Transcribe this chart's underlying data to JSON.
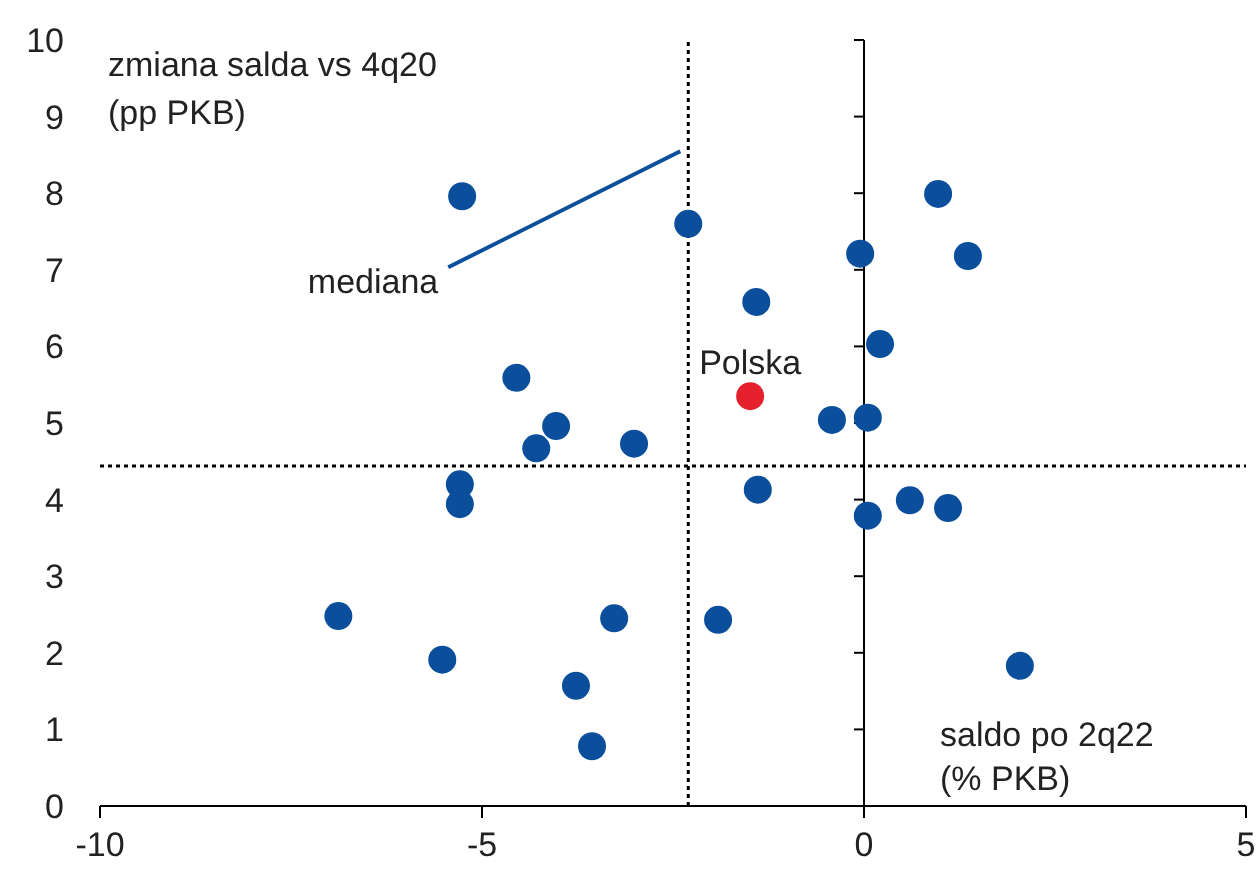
{
  "chart_data": {
    "type": "scatter",
    "xlabel": "saldo po 2q22\n(% PKB)",
    "ylabel": "zmiana salda vs 4q20\n(pp PKB)",
    "xlim": [
      -10,
      5
    ],
    "xticks": [
      -10,
      -5,
      0,
      5
    ],
    "ylim": [
      0,
      10
    ],
    "yticks": [
      0,
      1,
      2,
      3,
      4,
      5,
      6,
      7,
      8,
      9,
      10
    ],
    "marker": "circle",
    "series": [
      {
        "color": "#0b4f9c",
        "x": [
          -6.88,
          -5.26,
          -5.52,
          -5.29,
          -5.29,
          -4.55,
          -4.29,
          -4.03,
          -3.77,
          -3.56,
          -3.27,
          -3.01,
          -2.3,
          -1.91,
          -1.41,
          -1.39,
          -0.42,
          -0.05,
          0.05,
          0.05,
          0.21,
          0.6,
          0.97,
          1.1,
          1.36,
          2.04
        ],
        "values": [
          2.48,
          7.96,
          1.91,
          4.2,
          3.94,
          5.59,
          4.67,
          4.96,
          1.57,
          0.78,
          2.45,
          4.73,
          7.6,
          2.43,
          6.58,
          4.13,
          5.04,
          7.21,
          5.07,
          3.79,
          6.03,
          3.99,
          7.99,
          3.89,
          7.18,
          1.83
        ]
      },
      {
        "name": "Polska",
        "color": "#e3202c",
        "x": [
          -1.49
        ],
        "values": [
          5.35
        ]
      }
    ],
    "ref_lines": [
      {
        "axis": "x",
        "value": -2.3,
        "line_style": "dotted",
        "color": "#000000"
      },
      {
        "axis": "y",
        "value": 4.44,
        "line_style": "dotted",
        "color": "#000000"
      }
    ],
    "annotations": [
      {
        "text": "mediana",
        "x": -2.3,
        "y": 8.6
      }
    ]
  }
}
